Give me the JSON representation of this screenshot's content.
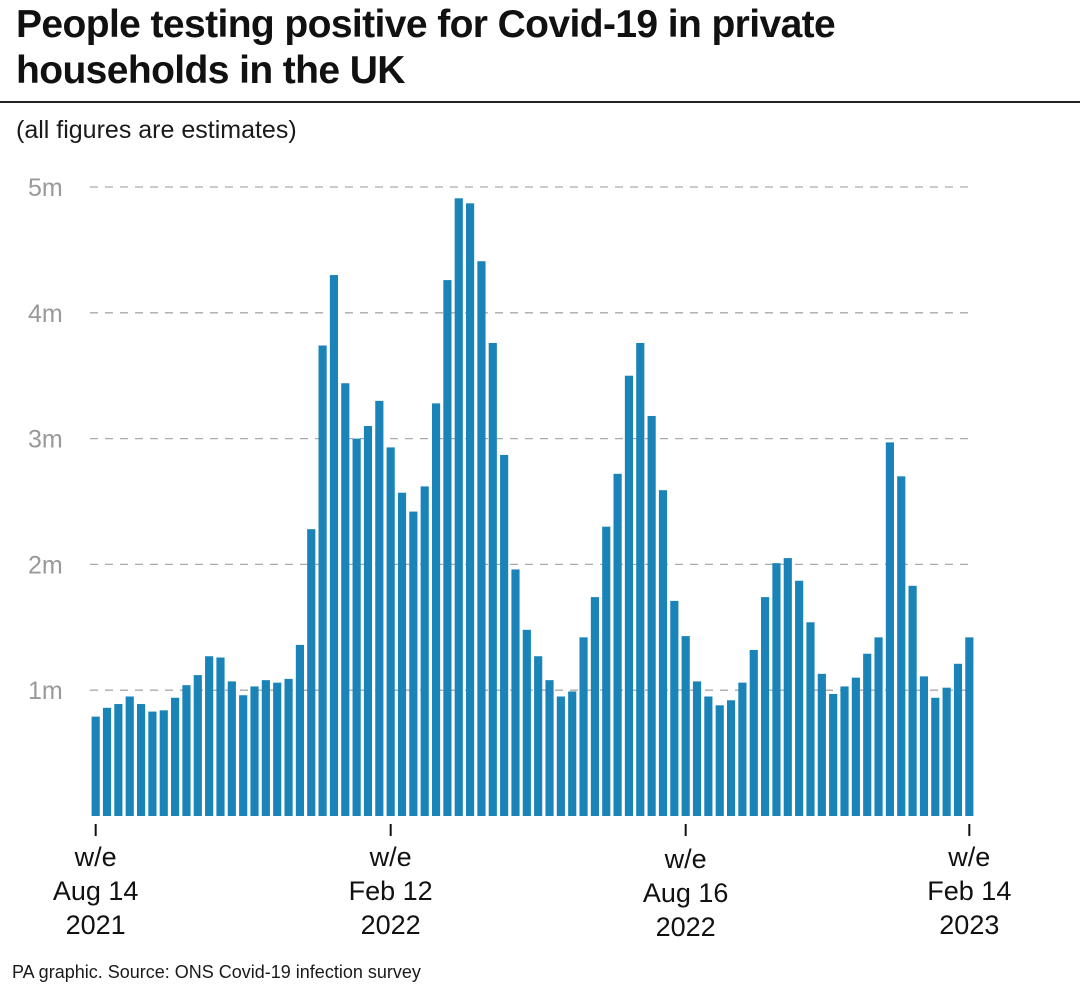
{
  "title": "People testing positive for Covid-19 in private\nhouseholds in the UK",
  "subtitle": "(all figures are estimates)",
  "source": "PA graphic. Source: ONS Covid-19 infection survey",
  "colors": {
    "bar": "#1a84b8",
    "grid": "#aaaaaa",
    "tick_label": "#999999",
    "axis_label": "#111111"
  },
  "chart_data": {
    "type": "bar",
    "title": "People testing positive for Covid-19 in private households in the UK",
    "subtitle": "(all figures are estimates)",
    "xlabel": "",
    "ylabel": "",
    "ylim": [
      0,
      5000000
    ],
    "y_ticks": [
      {
        "value": 1000000,
        "label": "1m"
      },
      {
        "value": 2000000,
        "label": "2m"
      },
      {
        "value": 3000000,
        "label": "3m"
      },
      {
        "value": 4000000,
        "label": "4m"
      },
      {
        "value": 5000000,
        "label": "5m"
      }
    ],
    "grid": true,
    "x_ticks": [
      {
        "index": 0,
        "lines": [
          "w/e",
          "Aug 14",
          "2021"
        ]
      },
      {
        "index": 26,
        "lines": [
          "w/e",
          "Feb 12",
          "2022"
        ]
      },
      {
        "index": 52,
        "lines": [
          "w/e",
          "Aug 16",
          "2022"
        ]
      },
      {
        "index": 77,
        "lines": [
          "w/e",
          "Feb 14",
          "2023"
        ]
      }
    ],
    "values": [
      790000,
      860000,
      890000,
      950000,
      890000,
      830000,
      840000,
      940000,
      1040000,
      1120000,
      1270000,
      1260000,
      1070000,
      960000,
      1030000,
      1080000,
      1060000,
      1090000,
      1360000,
      2280000,
      3740000,
      4300000,
      3440000,
      3000000,
      3100000,
      3300000,
      2930000,
      2570000,
      2420000,
      2620000,
      3280000,
      4260000,
      4910000,
      4870000,
      4410000,
      3760000,
      2870000,
      1960000,
      1480000,
      1270000,
      1080000,
      950000,
      990000,
      1420000,
      1740000,
      2300000,
      2720000,
      3500000,
      3760000,
      3180000,
      2590000,
      1710000,
      1430000,
      1070000,
      950000,
      880000,
      920000,
      1060000,
      1320000,
      1740000,
      2010000,
      2050000,
      1870000,
      1540000,
      1130000,
      970000,
      1030000,
      1100000,
      1290000,
      1420000,
      2970000,
      2700000,
      1830000,
      1110000,
      940000,
      1020000,
      1210000,
      1420000
    ]
  }
}
